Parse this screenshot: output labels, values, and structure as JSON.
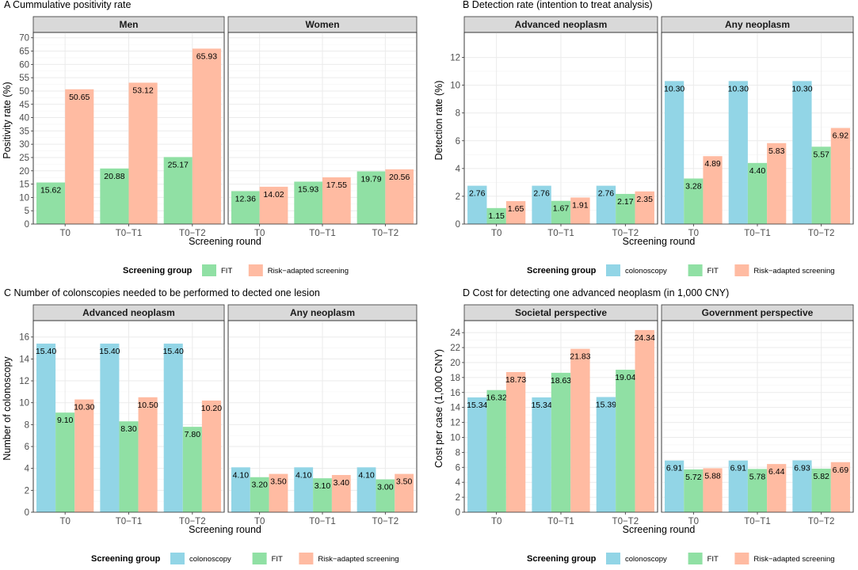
{
  "colors": {
    "colonoscopy": "#92d5e6",
    "FIT": "#90e0a4",
    "Risk-adapted screening": "#ffbba2"
  },
  "chart_data": [
    {
      "type": "bar",
      "panel_title": "A Cummulative positivity rate",
      "ylabel": "Positivity rate (%)",
      "xlabel": "Screening round",
      "ylim": [
        0,
        72
      ],
      "yticks": [
        0,
        5,
        10,
        15,
        20,
        25,
        30,
        35,
        40,
        45,
        50,
        55,
        60,
        65,
        70
      ],
      "categories": [
        "T0",
        "T0−T1",
        "T0−T2"
      ],
      "legend_title": "Screening group",
      "legend": [
        "FIT",
        "Risk−adapted screening"
      ],
      "facets": [
        {
          "name": "Men",
          "series": [
            {
              "name": "FIT",
              "values": [
                15.62,
                20.88,
                25.17
              ],
              "labels": [
                "15.62",
                "20.88",
                "25.17"
              ]
            },
            {
              "name": "Risk-adapted screening",
              "values": [
                50.65,
                53.12,
                65.93
              ],
              "labels": [
                "50.65",
                "53.12",
                "65.93"
              ]
            }
          ]
        },
        {
          "name": "Women",
          "series": [
            {
              "name": "FIT",
              "values": [
                12.36,
                15.93,
                19.79
              ],
              "labels": [
                "12.36",
                "15.93",
                "19.79"
              ]
            },
            {
              "name": "Risk-adapted screening",
              "values": [
                14.02,
                17.55,
                20.56
              ],
              "labels": [
                "14.02",
                "17.55",
                "20.56"
              ]
            }
          ]
        }
      ]
    },
    {
      "type": "bar",
      "panel_title": "B Detection rate (intention to treat analysis)",
      "ylabel": "Detection rate (%)",
      "xlabel": "Screening round",
      "ylim": [
        0,
        13.8
      ],
      "yticks": [
        0,
        2,
        4,
        6,
        8,
        10,
        12
      ],
      "categories": [
        "T0",
        "T0−T1",
        "T0−T2"
      ],
      "legend_title": "Screening group",
      "legend": [
        "colonoscopy",
        "FIT",
        "Risk−adapted screening"
      ],
      "facets": [
        {
          "name": "Advanced neoplasm",
          "series": [
            {
              "name": "colonoscopy",
              "values": [
                2.76,
                2.76,
                2.76
              ],
              "labels": [
                "2.76",
                "2.76",
                "2.76"
              ]
            },
            {
              "name": "FIT",
              "values": [
                1.15,
                1.67,
                2.17
              ],
              "labels": [
                "1.15",
                "1.67",
                "2.17"
              ]
            },
            {
              "name": "Risk-adapted screening",
              "values": [
                1.65,
                1.91,
                2.35
              ],
              "labels": [
                "1.65",
                "1.91",
                "2.35"
              ]
            }
          ]
        },
        {
          "name": "Any neoplasm",
          "series": [
            {
              "name": "colonoscopy",
              "values": [
                10.3,
                10.3,
                10.3
              ],
              "labels": [
                "10.30",
                "10.30",
                "10.30"
              ]
            },
            {
              "name": "FIT",
              "values": [
                3.28,
                4.4,
                5.57
              ],
              "labels": [
                "3.28",
                "4.40",
                "5.57"
              ]
            },
            {
              "name": "Risk-adapted screening",
              "values": [
                4.89,
                5.83,
                6.92
              ],
              "labels": [
                "4.89",
                "5.83",
                "6.92"
              ]
            }
          ]
        }
      ]
    },
    {
      "type": "bar",
      "panel_title": "C Number of colonscopies needed to be performed to dected one lesion",
      "ylabel": "Number of colonoscopy",
      "xlabel": "Screening round",
      "ylim": [
        0,
        17.5
      ],
      "yticks": [
        0,
        2,
        4,
        6,
        8,
        10,
        12,
        14,
        16
      ],
      "categories": [
        "T0",
        "T0−T1",
        "T0−T2"
      ],
      "legend_title": "Screening group",
      "legend": [
        "colonoscopy",
        "FIT",
        "Risk−adapted screening"
      ],
      "facets": [
        {
          "name": "Advanced neoplasm",
          "series": [
            {
              "name": "colonoscopy",
              "values": [
                15.4,
                15.4,
                15.4
              ],
              "labels": [
                "15.40",
                "15.40",
                "15.40"
              ]
            },
            {
              "name": "FIT",
              "values": [
                9.1,
                8.3,
                7.8
              ],
              "labels": [
                "9.10",
                "8.30",
                "7.80"
              ]
            },
            {
              "name": "Risk-adapted screening",
              "values": [
                10.3,
                10.5,
                10.2
              ],
              "labels": [
                "10.30",
                "10.50",
                "10.20"
              ]
            }
          ]
        },
        {
          "name": "Any neoplasm",
          "series": [
            {
              "name": "colonoscopy",
              "values": [
                4.1,
                4.1,
                4.1
              ],
              "labels": [
                "4.10",
                "4.10",
                "4.10"
              ]
            },
            {
              "name": "FIT",
              "values": [
                3.2,
                3.1,
                3.0
              ],
              "labels": [
                "3.20",
                "3.10",
                "3.00"
              ]
            },
            {
              "name": "Risk-adapted screening",
              "values": [
                3.5,
                3.4,
                3.5
              ],
              "labels": [
                "3.50",
                "3.40",
                "3.50"
              ]
            }
          ]
        }
      ]
    },
    {
      "type": "bar",
      "panel_title": "D Cost for detecting one advanced neoplasm (in 1,000 CNY)",
      "ylabel": "Cost per case (1,000 CNY)",
      "xlabel": "Screening round",
      "ylim": [
        0,
        25.6
      ],
      "yticks": [
        0,
        2,
        4,
        6,
        8,
        10,
        12,
        14,
        16,
        18,
        20,
        22,
        24
      ],
      "categories": [
        "T0",
        "T0−T1",
        "T0−T2"
      ],
      "legend_title": "Screening group",
      "legend": [
        "colonoscopy",
        "FIT",
        "Risk−adapted screening"
      ],
      "facets": [
        {
          "name": "Societal perspective",
          "series": [
            {
              "name": "colonoscopy",
              "values": [
                15.34,
                15.34,
                15.39
              ],
              "labels": [
                "15.34",
                "15.34",
                "15.39"
              ]
            },
            {
              "name": "FIT",
              "values": [
                16.32,
                18.63,
                19.04
              ],
              "labels": [
                "16.32",
                "18.63",
                "19.04"
              ]
            },
            {
              "name": "Risk-adapted screening",
              "values": [
                18.73,
                21.83,
                24.34
              ],
              "labels": [
                "18.73",
                "21.83",
                "24.34"
              ]
            }
          ]
        },
        {
          "name": "Government perspective",
          "series": [
            {
              "name": "colonoscopy",
              "values": [
                6.91,
                6.91,
                6.93
              ],
              "labels": [
                "6.91",
                "6.91",
                "6.93"
              ]
            },
            {
              "name": "FIT",
              "values": [
                5.72,
                5.78,
                5.82
              ],
              "labels": [
                "5.72",
                "5.78",
                "5.82"
              ]
            },
            {
              "name": "Risk-adapted screening",
              "values": [
                5.88,
                6.44,
                6.69
              ],
              "labels": [
                "5.88",
                "6.44",
                "6.69"
              ]
            }
          ]
        }
      ]
    }
  ]
}
